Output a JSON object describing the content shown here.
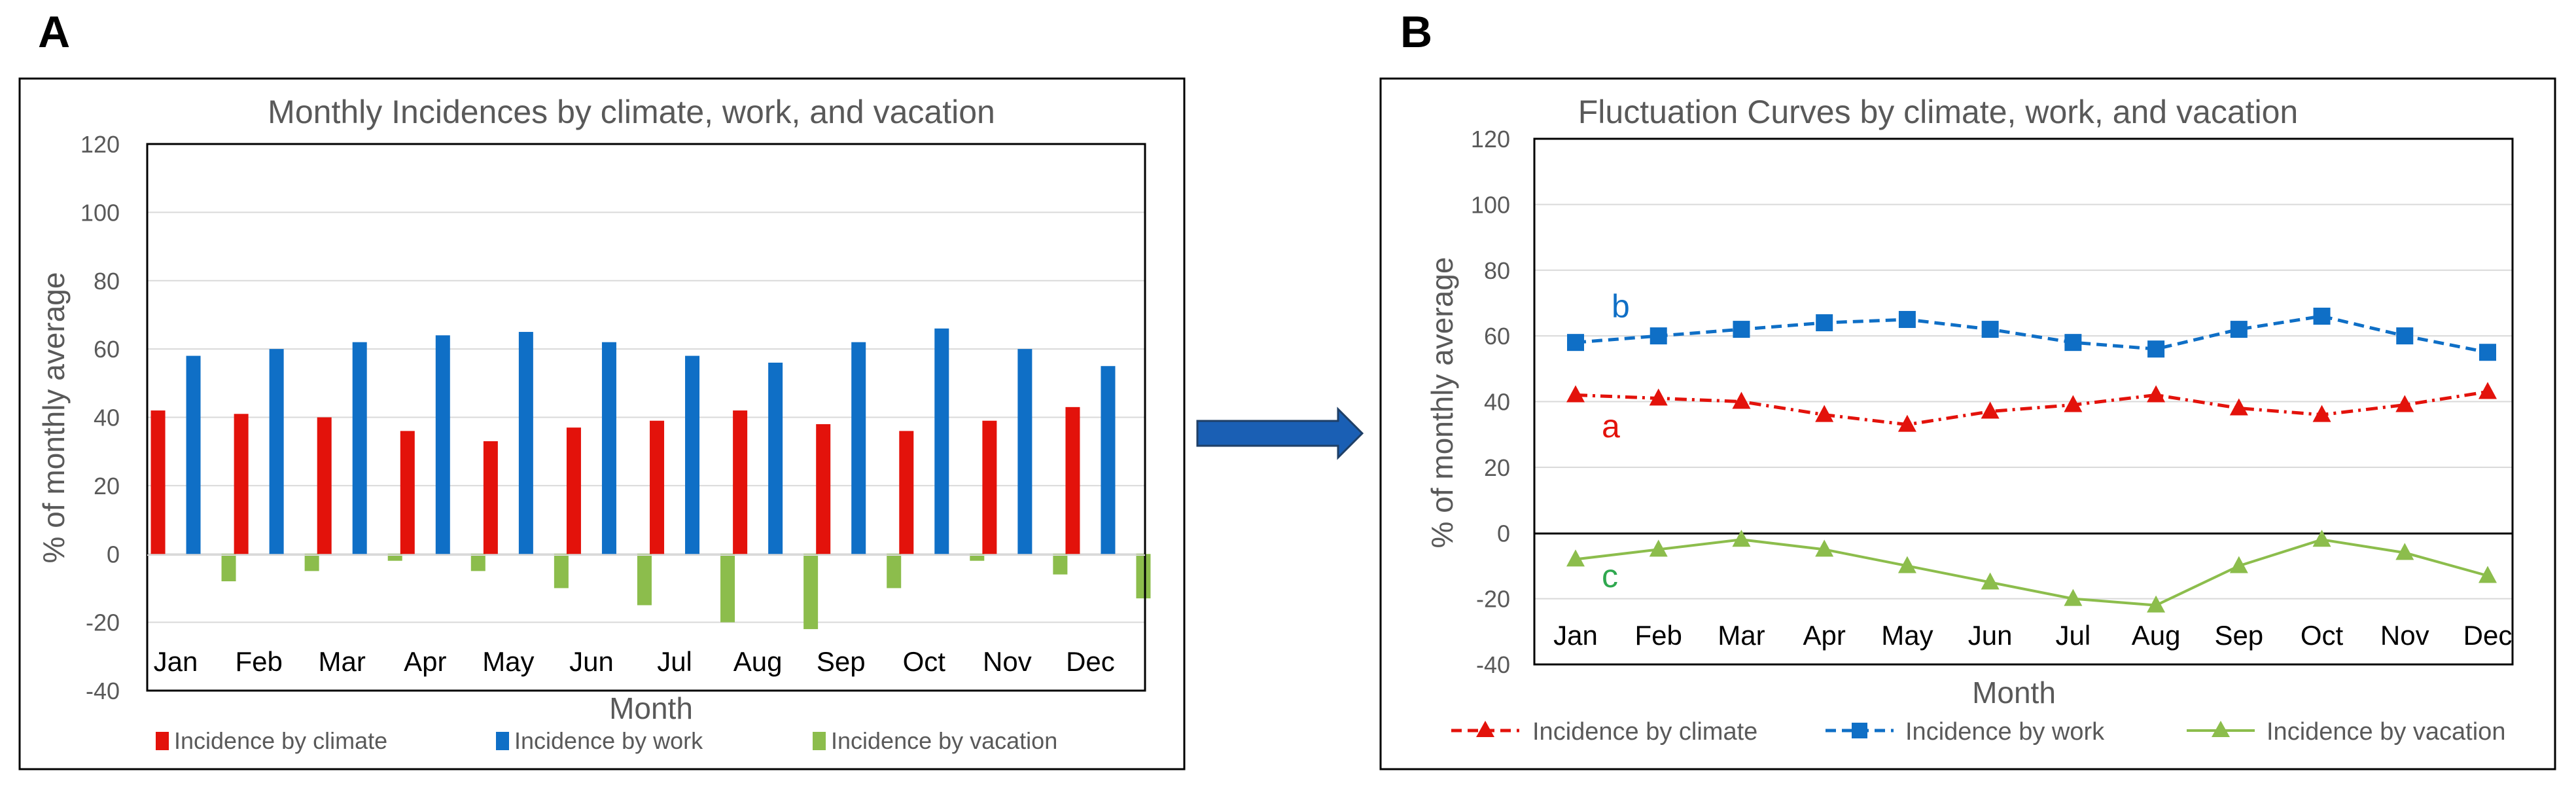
{
  "panels": {
    "a_letter": "A",
    "b_letter": "B"
  },
  "colors": {
    "climate": "#e3120b",
    "work": "#0f6fc6",
    "vacation": "#8cbd4c",
    "arrow": "#1a5fb4"
  },
  "chart_data": [
    {
      "id": "A",
      "type": "bar",
      "title": "Monthly Incidences by climate, work, and vacation",
      "xlabel": "Month",
      "ylabel": "% of monthly average",
      "ylim": [
        -40,
        120
      ],
      "yticks": [
        "120",
        "100",
        "80",
        "60",
        "40",
        "20",
        "0",
        "-20",
        "-40"
      ],
      "categories": [
        "Jan",
        "Feb",
        "Mar",
        "Apr",
        "May",
        "Jun",
        "Jul",
        "Aug",
        "Sep",
        "Oct",
        "Nov",
        "Dec"
      ],
      "grid": true,
      "legend_position": "bottom",
      "series": [
        {
          "name": "Incidence by climate",
          "color": "#e3120b",
          "values": [
            42,
            41,
            40,
            36,
            33,
            37,
            39,
            42,
            38,
            36,
            39,
            43
          ]
        },
        {
          "name": "Incidence by work",
          "color": "#0f6fc6",
          "values": [
            58,
            60,
            62,
            64,
            65,
            62,
            58,
            56,
            62,
            66,
            60,
            55
          ]
        },
        {
          "name": "Incidence by vacation",
          "color": "#8cbd4c",
          "values": [
            -8,
            -5,
            -2,
            -5,
            -10,
            -15,
            -20,
            -22,
            -10,
            -2,
            -6,
            -13
          ]
        }
      ]
    },
    {
      "id": "B",
      "type": "line",
      "title": "Fluctuation Curves by climate, work, and vacation",
      "xlabel": "Month",
      "ylabel": "% of monthly average",
      "ylim": [
        -40,
        120
      ],
      "yticks": [
        "120",
        "100",
        "80",
        "60",
        "40",
        "20",
        "0",
        "-20",
        "-40"
      ],
      "categories": [
        "Jan",
        "Feb",
        "Mar",
        "Apr",
        "May",
        "Jun",
        "Jul",
        "Aug",
        "Sep",
        "Oct",
        "Nov",
        "Dec"
      ],
      "grid": true,
      "legend_position": "bottom",
      "series": [
        {
          "name": "Incidence by climate",
          "label": "a",
          "color": "#e3120b",
          "marker": "triangle",
          "dash": "dash-dot",
          "values": [
            42,
            41,
            40,
            36,
            33,
            37,
            39,
            42,
            38,
            36,
            39,
            43
          ]
        },
        {
          "name": "Incidence by work",
          "label": "b",
          "color": "#0f6fc6",
          "marker": "square",
          "dash": "dash",
          "values": [
            58,
            60,
            62,
            64,
            65,
            62,
            58,
            56,
            62,
            66,
            60,
            55
          ]
        },
        {
          "name": "Incidence by vacation",
          "label": "c",
          "color": "#2fa84f",
          "line_color": "#8cbd4c",
          "marker": "triangle",
          "dash": "solid",
          "values": [
            -8,
            -5,
            -2,
            -5,
            -10,
            -15,
            -20,
            -22,
            -10,
            -2,
            -6,
            -13
          ]
        }
      ]
    }
  ]
}
